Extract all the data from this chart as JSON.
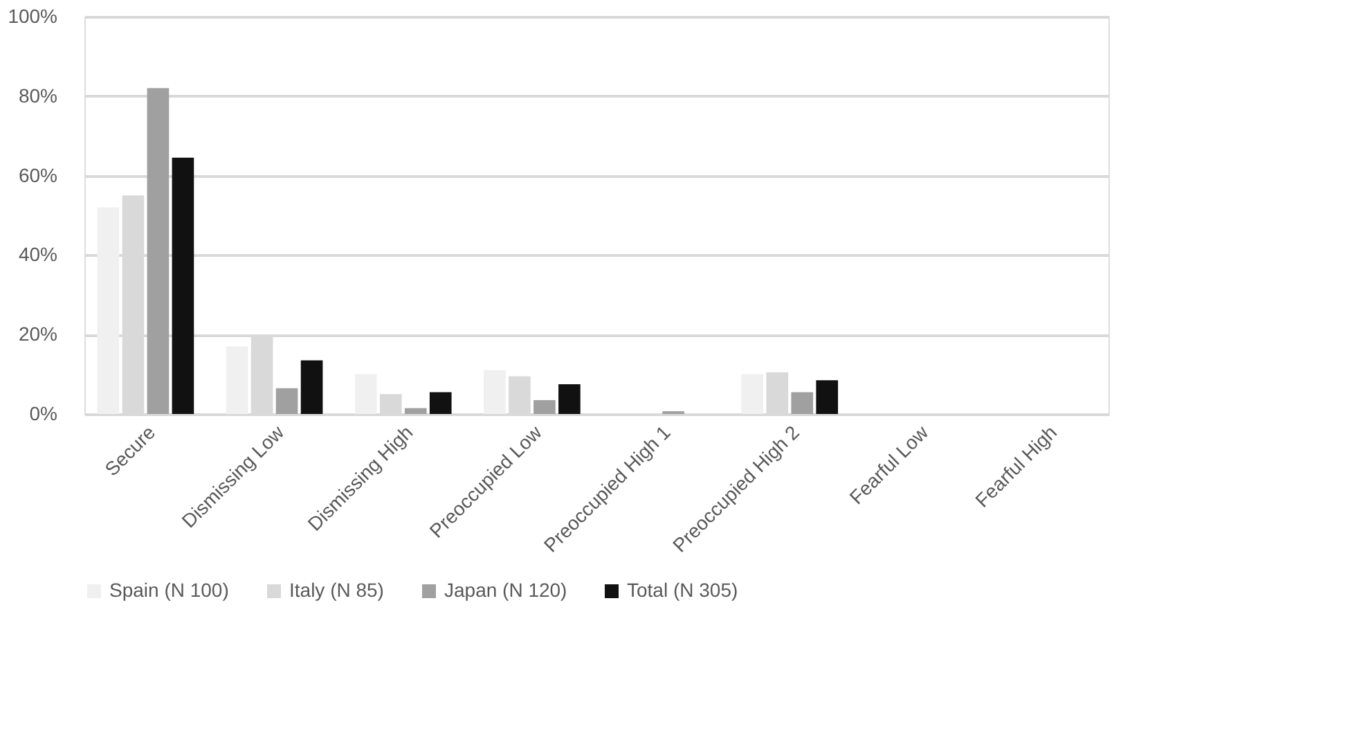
{
  "chart_data": {
    "type": "bar",
    "categories": [
      "Secure",
      "Dismissing Low",
      "Dismissing High",
      "Preoccupied Low",
      "Preoccupied High 1",
      "Preoccupied High 2",
      "Fearful Low",
      "Fearful High"
    ],
    "series": [
      {
        "name": "Spain (N 100)",
        "color": "#f0f0f0",
        "values": [
          52,
          17,
          10,
          11,
          0,
          10,
          0,
          0
        ]
      },
      {
        "name": "Italy (N 85)",
        "color": "#d9d9d9",
        "values": [
          55,
          20,
          5,
          9.5,
          0,
          10.5,
          0,
          0
        ]
      },
      {
        "name": "Japan (N 120)",
        "color": "#a0a0a0",
        "values": [
          82,
          6.5,
          1.5,
          3.5,
          0.7,
          5.5,
          0,
          0
        ]
      },
      {
        "name": "Total (N 305)",
        "color": "#111111",
        "values": [
          64.5,
          13.5,
          5.5,
          7.5,
          0,
          8.5,
          0,
          0
        ]
      }
    ],
    "ylim": [
      0,
      100
    ],
    "yticks": [
      {
        "value": 0,
        "label": "0%"
      },
      {
        "value": 20,
        "label": "20%"
      },
      {
        "value": 40,
        "label": "40%"
      },
      {
        "value": 60,
        "label": "60%"
      },
      {
        "value": 80,
        "label": "80%"
      },
      {
        "value": 100,
        "label": "100%"
      }
    ],
    "grid": "y",
    "legend": "bottom"
  }
}
